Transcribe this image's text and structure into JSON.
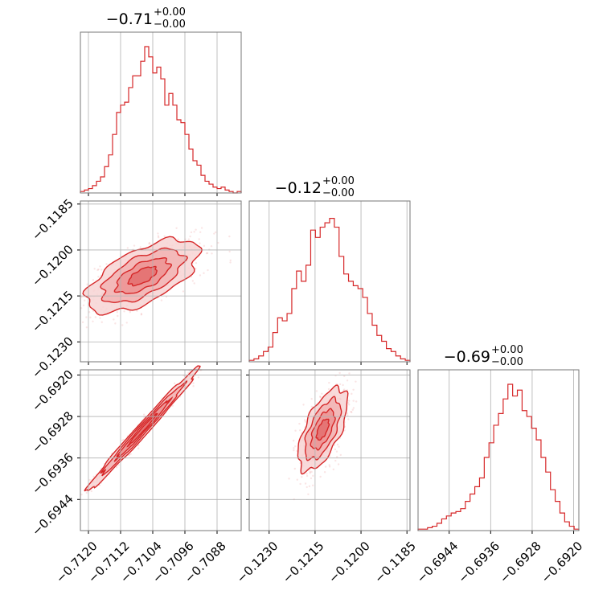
{
  "chart_data": {
    "type": "corner",
    "color": "#d62728",
    "parameters": [
      {
        "title_main": "−0.71",
        "title_sup": "+0.00",
        "title_sub": "−0.00",
        "range": [
          -0.7122,
          -0.7082
        ],
        "ticks": [
          -0.712,
          -0.7112,
          -0.7104,
          -0.7096,
          -0.7088
        ],
        "tick_labels": [
          "−0.7120",
          "−0.7112",
          "−0.7104",
          "−0.7096",
          "−0.7088"
        ],
        "hist_density": [
          0.01,
          0.02,
          0.03,
          0.05,
          0.08,
          0.11,
          0.18,
          0.26,
          0.4,
          0.55,
          0.6,
          0.62,
          0.72,
          0.8,
          0.8,
          0.9,
          1.0,
          0.93,
          0.82,
          0.86,
          0.78,
          0.6,
          0.68,
          0.6,
          0.5,
          0.48,
          0.4,
          0.3,
          0.22,
          0.19,
          0.12,
          0.08,
          0.06,
          0.04,
          0.03,
          0.04,
          0.02,
          0.01,
          0.0,
          0.01
        ]
      },
      {
        "title_main": "−0.12",
        "title_sup": "+0.00",
        "title_sub": "−0.00",
        "range": [
          -0.12365,
          -0.1184
        ],
        "ticks": [
          -0.123,
          -0.1215,
          -0.12,
          -0.1185
        ],
        "tick_labels": [
          "−0.1230",
          "−0.1215",
          "−0.1200",
          "−0.1185"
        ],
        "hist_density": [
          0.01,
          0.02,
          0.04,
          0.07,
          0.1,
          0.2,
          0.3,
          0.28,
          0.33,
          0.5,
          0.62,
          0.55,
          0.66,
          0.9,
          0.85,
          0.92,
          0.95,
          0.98,
          0.92,
          0.72,
          0.6,
          0.55,
          0.52,
          0.5,
          0.44,
          0.33,
          0.25,
          0.18,
          0.14,
          0.09,
          0.07,
          0.04,
          0.02,
          0.01
        ]
      },
      {
        "title_main": "−0.69",
        "title_sup": "+0.00",
        "title_sub": "−0.00",
        "range": [
          -0.695,
          -0.6919
        ],
        "ticks": [
          -0.6944,
          -0.6936,
          -0.6928,
          -0.692
        ],
        "tick_labels": [
          "−0.6944",
          "−0.6936",
          "−0.6928",
          "−0.6920"
        ],
        "hist_density": [
          0.01,
          0.01,
          0.02,
          0.03,
          0.05,
          0.08,
          0.1,
          0.12,
          0.13,
          0.15,
          0.2,
          0.25,
          0.3,
          0.36,
          0.5,
          0.6,
          0.72,
          0.8,
          0.9,
          1.0,
          0.92,
          0.96,
          0.82,
          0.78,
          0.7,
          0.62,
          0.5,
          0.4,
          0.28,
          0.2,
          0.12,
          0.06,
          0.03,
          0.01
        ]
      }
    ],
    "pairs": [
      {
        "x_param": 0,
        "y_param": 1,
        "x_center": -0.71065,
        "y_center": -0.12085,
        "x_sd": 0.0007,
        "y_sd": 0.0006,
        "corr": 0.62
      },
      {
        "x_param": 0,
        "y_param": 2,
        "x_center": -0.71065,
        "y_center": -0.69305,
        "x_sd": 0.0007,
        "y_sd": 0.0006,
        "corr": 0.99
      },
      {
        "x_param": 1,
        "y_param": 2,
        "x_center": -0.12125,
        "y_center": -0.69305,
        "x_sd": 0.0004,
        "y_sd": 0.0004,
        "corr": 0.62
      }
    ],
    "grid": true
  }
}
